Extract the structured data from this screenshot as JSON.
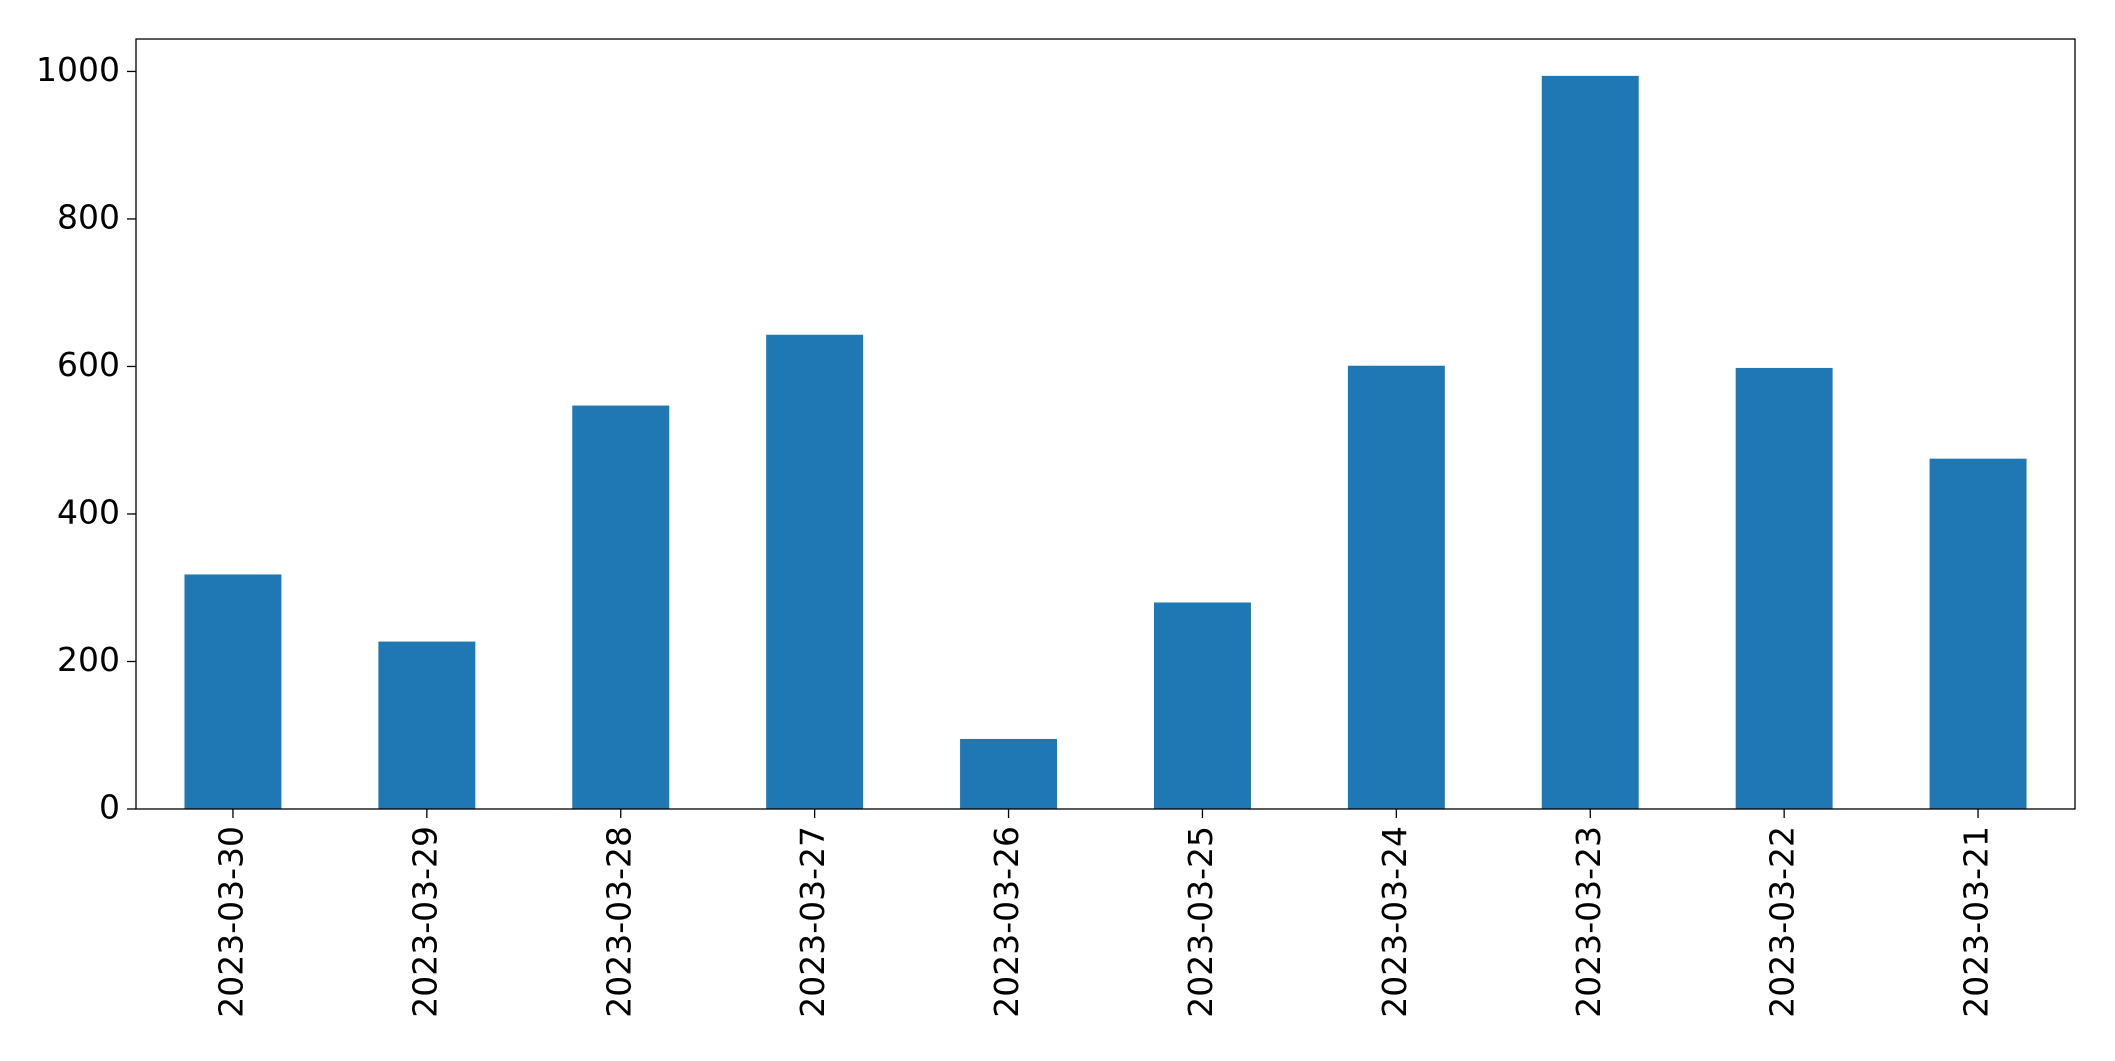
{
  "chart_data": {
    "type": "bar",
    "categories": [
      "2023-03-30",
      "2023-03-29",
      "2023-03-28",
      "2023-03-27",
      "2023-03-26",
      "2023-03-25",
      "2023-03-24",
      "2023-03-23",
      "2023-03-22",
      "2023-03-21"
    ],
    "values": [
      318,
      227,
      547,
      643,
      95,
      280,
      601,
      994,
      598,
      475
    ],
    "color": "#1f77b4",
    "ylim": [
      0,
      1044
    ],
    "yticks": [
      0,
      200,
      400,
      600,
      800,
      1000
    ],
    "grid": false
  }
}
